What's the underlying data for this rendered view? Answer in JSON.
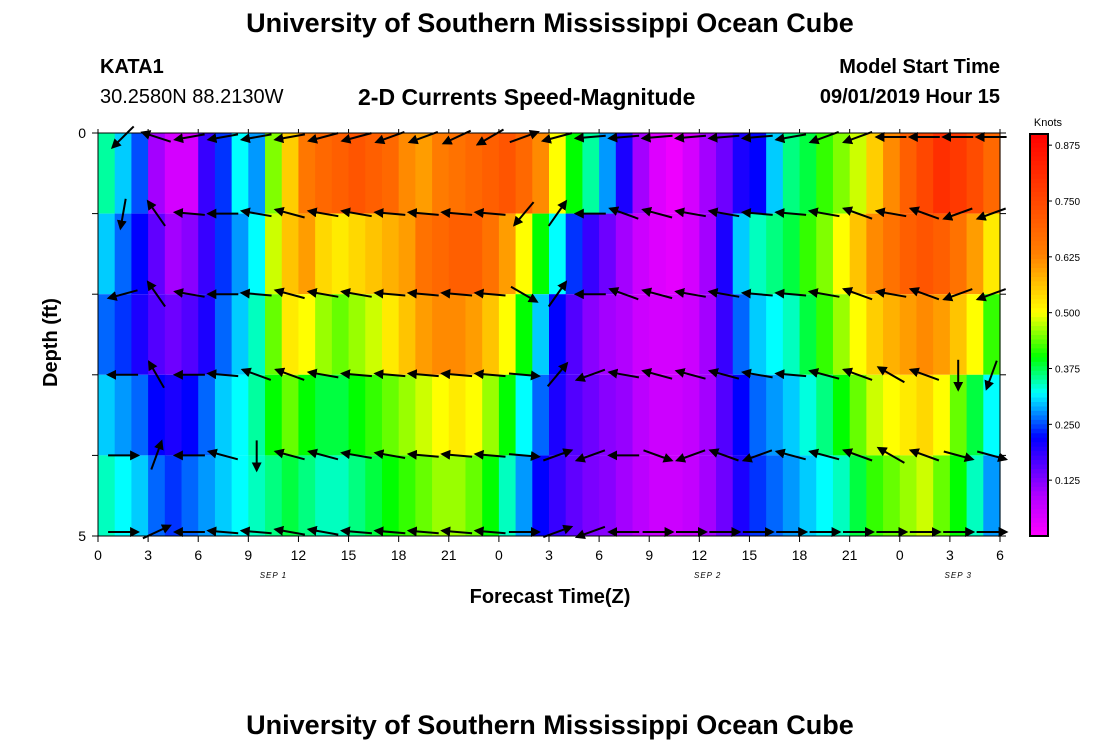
{
  "header": {
    "title_top": "University of Southern Mississippi Ocean Cube",
    "station_id": "KATA1",
    "coordinates": "30.2580N 88.2130W",
    "product": "2-D Currents Speed-Magnitude",
    "model_label": "Model Start Time",
    "model_time": "09/01/2019 Hour 15",
    "title_bottom": "University of Southern Mississippi Ocean Cube"
  },
  "chart_data": {
    "type": "heatmap",
    "title": "2-D Currents Speed-Magnitude",
    "xlabel": "Forecast Time(Z)",
    "ylabel": "Depth (ft)",
    "x_tick_labels": [
      "0",
      "3",
      "6",
      "9",
      "12",
      "15",
      "18",
      "21",
      "0",
      "3",
      "6",
      "9",
      "12",
      "15",
      "18",
      "21",
      "0",
      "3",
      "6"
    ],
    "date_labels": [
      {
        "text": "SEP 1",
        "hour": 10.5
      },
      {
        "text": "SEP 2",
        "hour": 36.5
      },
      {
        "text": "SEP 3",
        "hour": 51.5
      }
    ],
    "y_tick_labels": [
      "0",
      "5"
    ],
    "depth_range": [
      0,
      5
    ],
    "hours_range": [
      0,
      54
    ],
    "hours_step": 1,
    "depth_levels": [
      0,
      1,
      2,
      3,
      4,
      5
    ],
    "colorbar": {
      "unit": "Knots",
      "range": [
        0,
        0.9
      ],
      "tick_labels": [
        "0.125",
        "0.250",
        "0.375",
        "0.500",
        "0.625",
        "0.750",
        "0.875"
      ],
      "tick_values": [
        0.125,
        0.25,
        0.375,
        0.5,
        0.625,
        0.75,
        0.875
      ]
    },
    "speed_knots": [
      [
        0.35,
        0.3,
        0.25,
        0.1,
        0.05,
        0.05,
        0.18,
        0.24,
        0.32,
        0.28,
        0.45,
        0.55,
        0.65,
        0.68,
        0.7,
        0.72,
        0.7,
        0.68,
        0.62,
        0.6,
        0.64,
        0.66,
        0.68,
        0.7,
        0.72,
        0.68,
        0.62,
        0.5,
        0.4,
        0.35,
        0.28,
        0.2,
        0.1,
        0.04,
        0.02,
        0.05,
        0.1,
        0.14,
        0.2,
        0.22,
        0.3,
        0.36,
        0.38,
        0.42,
        0.45,
        0.48,
        0.55,
        0.62,
        0.7,
        0.75,
        0.8,
        0.78,
        0.74,
        0.68,
        0.6
      ],
      [
        0.3,
        0.26,
        0.22,
        0.15,
        0.1,
        0.12,
        0.18,
        0.24,
        0.28,
        0.32,
        0.48,
        0.56,
        0.6,
        0.54,
        0.52,
        0.54,
        0.56,
        0.58,
        0.6,
        0.66,
        0.68,
        0.7,
        0.7,
        0.66,
        0.6,
        0.5,
        0.4,
        0.32,
        0.24,
        0.18,
        0.14,
        0.1,
        0.06,
        0.04,
        0.03,
        0.05,
        0.1,
        0.2,
        0.3,
        0.34,
        0.36,
        0.38,
        0.42,
        0.45,
        0.5,
        0.56,
        0.62,
        0.66,
        0.7,
        0.72,
        0.7,
        0.66,
        0.6,
        0.52,
        0.4
      ],
      [
        0.26,
        0.24,
        0.2,
        0.16,
        0.14,
        0.16,
        0.2,
        0.26,
        0.3,
        0.34,
        0.44,
        0.52,
        0.5,
        0.46,
        0.44,
        0.46,
        0.48,
        0.52,
        0.56,
        0.6,
        0.62,
        0.62,
        0.6,
        0.56,
        0.5,
        0.4,
        0.3,
        0.22,
        0.16,
        0.12,
        0.1,
        0.09,
        0.06,
        0.05,
        0.05,
        0.06,
        0.1,
        0.18,
        0.26,
        0.3,
        0.32,
        0.34,
        0.38,
        0.42,
        0.46,
        0.5,
        0.55,
        0.58,
        0.6,
        0.62,
        0.6,
        0.56,
        0.5,
        0.42,
        0.32
      ],
      [
        0.3,
        0.28,
        0.26,
        0.22,
        0.2,
        0.22,
        0.26,
        0.3,
        0.32,
        0.35,
        0.4,
        0.44,
        0.4,
        0.38,
        0.38,
        0.4,
        0.42,
        0.44,
        0.46,
        0.48,
        0.5,
        0.52,
        0.5,
        0.46,
        0.4,
        0.32,
        0.26,
        0.2,
        0.16,
        0.14,
        0.12,
        0.11,
        0.08,
        0.06,
        0.06,
        0.07,
        0.1,
        0.16,
        0.22,
        0.26,
        0.28,
        0.3,
        0.33,
        0.36,
        0.4,
        0.44,
        0.48,
        0.5,
        0.52,
        0.54,
        0.5,
        0.44,
        0.38,
        0.32,
        0.24
      ],
      [
        0.34,
        0.32,
        0.3,
        0.26,
        0.24,
        0.26,
        0.28,
        0.3,
        0.32,
        0.34,
        0.36,
        0.38,
        0.36,
        0.34,
        0.34,
        0.36,
        0.38,
        0.4,
        0.42,
        0.44,
        0.46,
        0.46,
        0.44,
        0.4,
        0.34,
        0.28,
        0.22,
        0.18,
        0.15,
        0.13,
        0.12,
        0.1,
        0.08,
        0.06,
        0.06,
        0.07,
        0.1,
        0.14,
        0.2,
        0.24,
        0.26,
        0.28,
        0.3,
        0.32,
        0.34,
        0.38,
        0.42,
        0.44,
        0.46,
        0.48,
        0.44,
        0.4,
        0.34,
        0.28,
        0.22
      ],
      [
        0.34,
        0.32,
        0.3,
        0.26,
        0.24,
        0.26,
        0.28,
        0.3,
        0.32,
        0.34,
        0.36,
        0.38,
        0.36,
        0.34,
        0.34,
        0.36,
        0.38,
        0.4,
        0.42,
        0.44,
        0.46,
        0.46,
        0.44,
        0.4,
        0.34,
        0.28,
        0.22,
        0.18,
        0.15,
        0.13,
        0.12,
        0.1,
        0.08,
        0.06,
        0.06,
        0.07,
        0.1,
        0.14,
        0.2,
        0.24,
        0.26,
        0.28,
        0.3,
        0.32,
        0.34,
        0.38,
        0.42,
        0.44,
        0.46,
        0.48,
        0.44,
        0.4,
        0.34,
        0.28,
        0.22
      ]
    ],
    "vector_rows": [
      {
        "depth": 0.05,
        "angles_deg": [
          225,
          162,
          190,
          190,
          190,
          190,
          195,
          195,
          200,
          200,
          205,
          210,
          20,
          195,
          185,
          185,
          185,
          185,
          185,
          185,
          190,
          200,
          200,
          180,
          180,
          180,
          180
        ]
      },
      {
        "depth": 1.0,
        "angles_deg": [
          260,
          125,
          175,
          180,
          170,
          165,
          170,
          170,
          175,
          175,
          175,
          175,
          230,
          55,
          180,
          160,
          165,
          170,
          170,
          175,
          175,
          170,
          160,
          170,
          160,
          200,
          200
        ]
      },
      {
        "depth": 2.0,
        "angles_deg": [
          195,
          125,
          170,
          180,
          175,
          165,
          170,
          170,
          175,
          175,
          175,
          175,
          330,
          55,
          180,
          160,
          165,
          170,
          170,
          175,
          175,
          170,
          160,
          170,
          160,
          200,
          200
        ]
      },
      {
        "depth": 3.0,
        "angles_deg": [
          180,
          120,
          180,
          175,
          160,
          160,
          170,
          175,
          175,
          175,
          175,
          175,
          355,
          50,
          200,
          170,
          165,
          165,
          165,
          170,
          175,
          165,
          160,
          150,
          160,
          270,
          250
        ]
      },
      {
        "depth": 4.0,
        "angles_deg": [
          0,
          70,
          180,
          165,
          270,
          165,
          165,
          170,
          170,
          175,
          175,
          175,
          355,
          20,
          200,
          180,
          340,
          200,
          160,
          200,
          165,
          165,
          160,
          150,
          160,
          345,
          345
        ]
      },
      {
        "depth": 4.95,
        "angles_deg": [
          0,
          25,
          180,
          175,
          175,
          170,
          170,
          175,
          175,
          175,
          175,
          175,
          0,
          20,
          200,
          180,
          0,
          0,
          0,
          0,
          0,
          0,
          0,
          0,
          0,
          0,
          0
        ]
      }
    ],
    "colors": {
      "magenta": "#ff00ff",
      "purple": "#b200ff",
      "blue": "#0000ff",
      "cyan": "#00ffff",
      "green": "#00ff00",
      "yellow": "#ffff00",
      "orange": "#ff8000",
      "red": "#ff0000"
    }
  }
}
